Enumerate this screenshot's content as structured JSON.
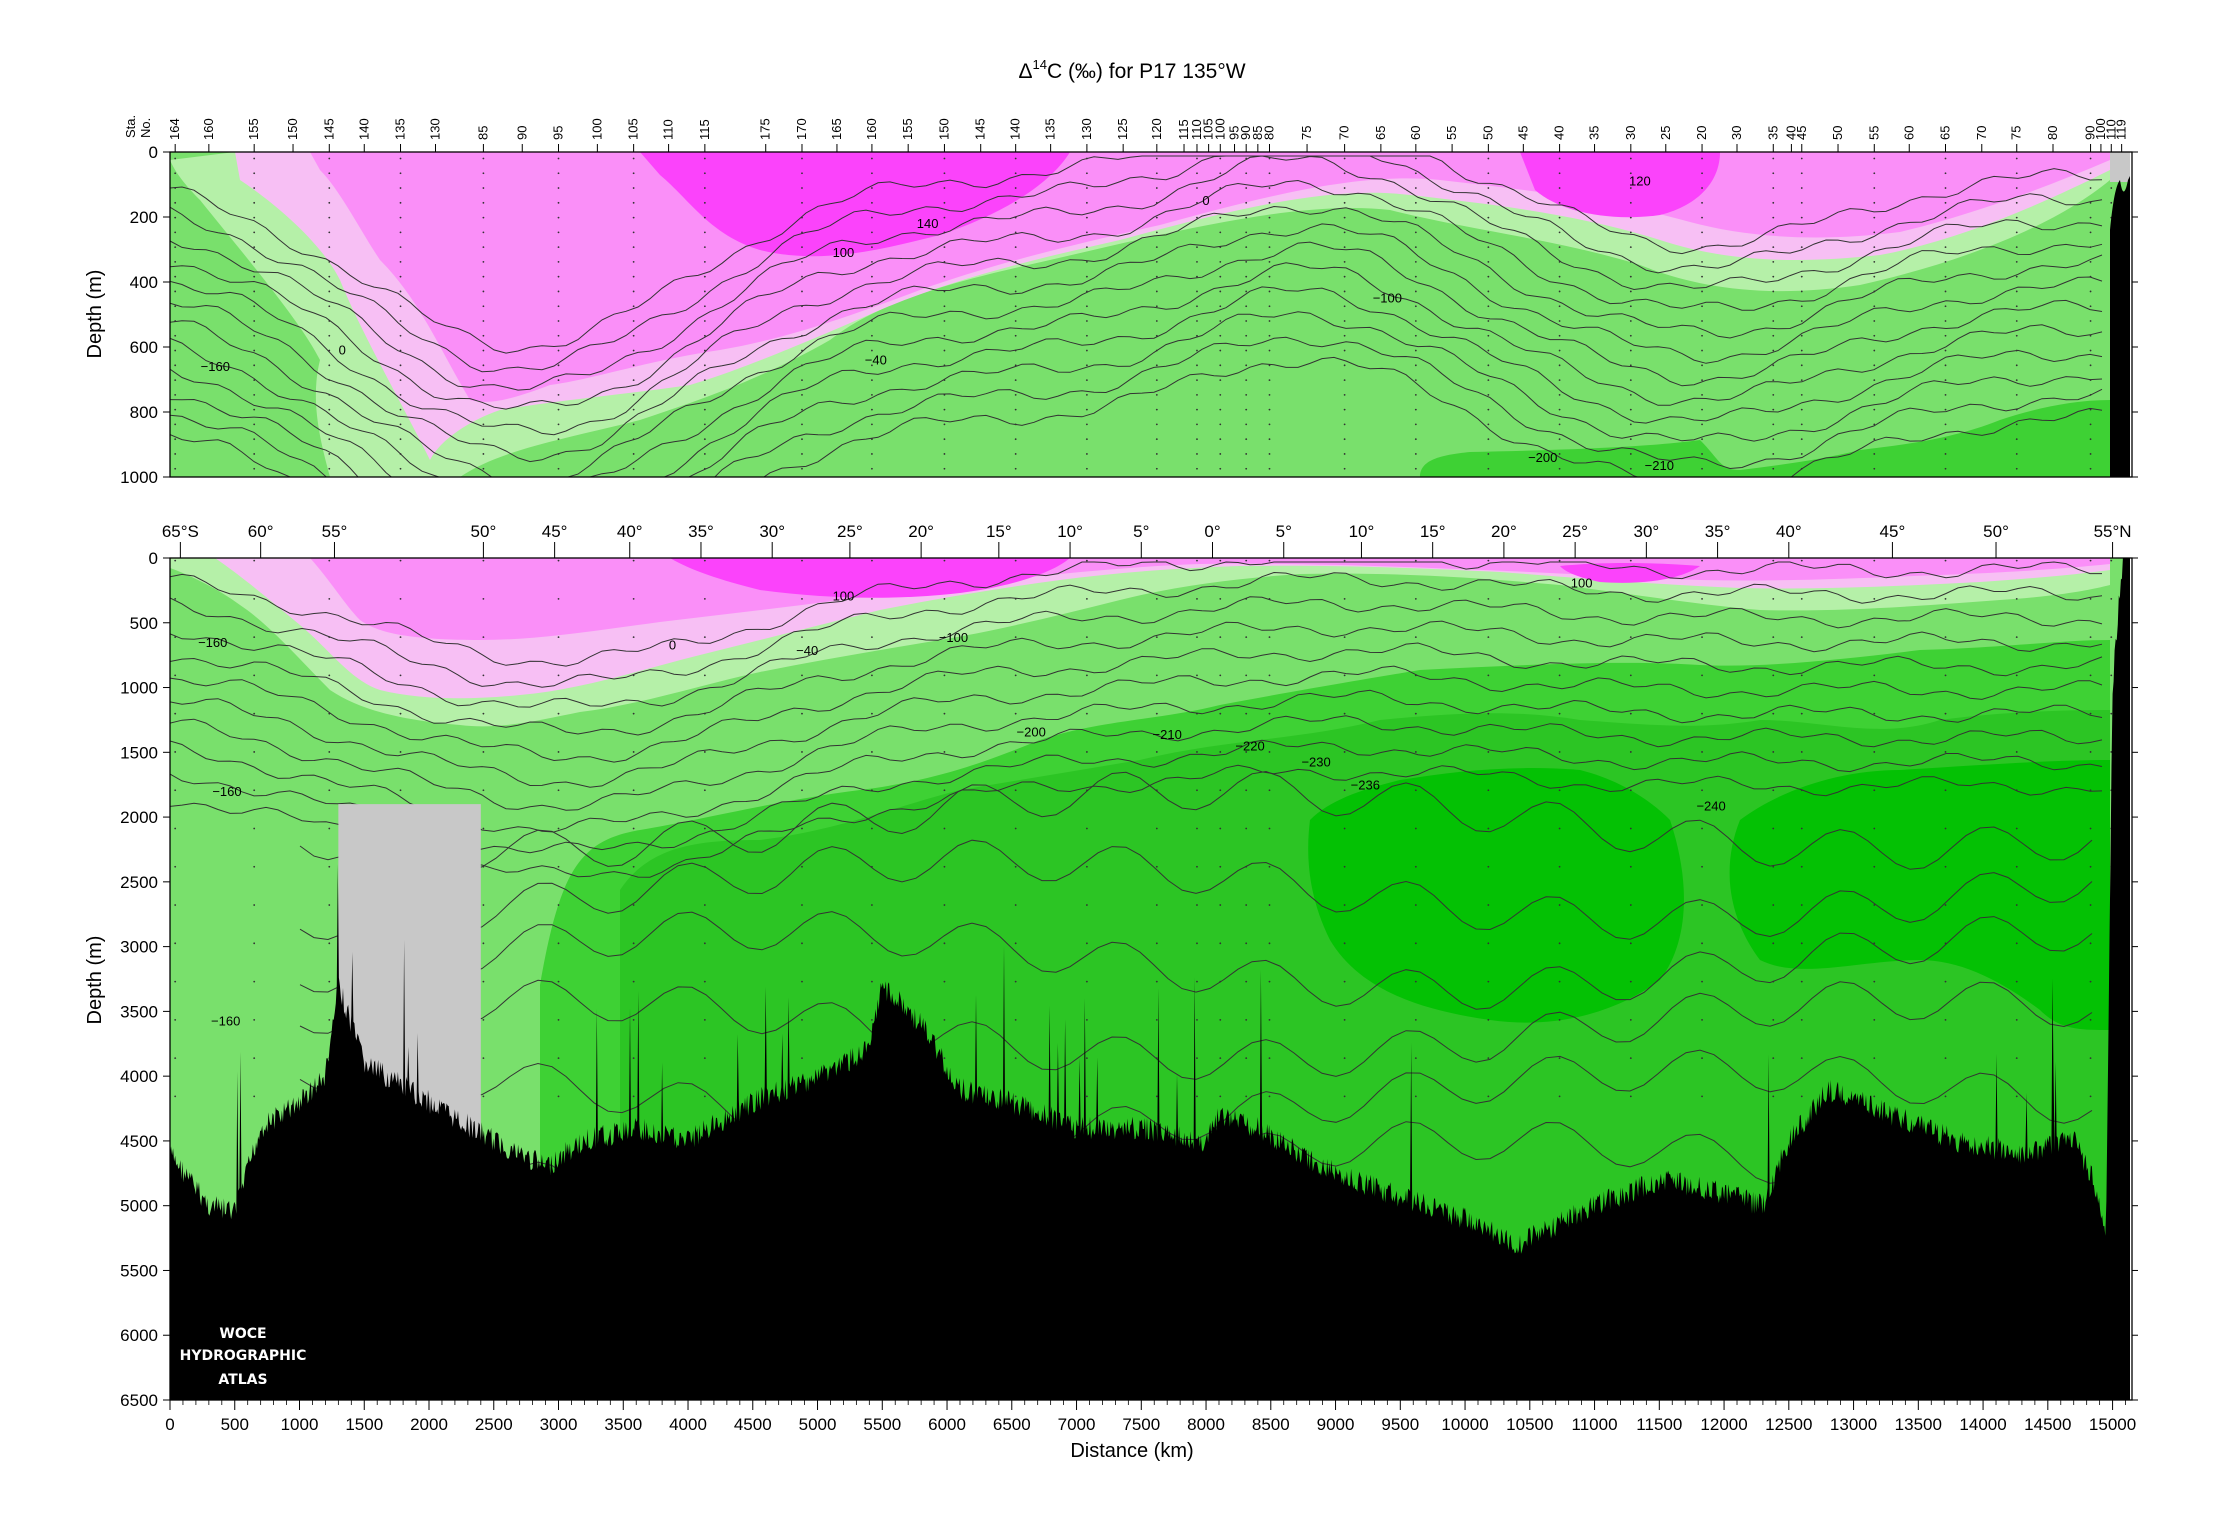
{
  "chart_data": {
    "type": "heatmap",
    "title": "Δ¹⁴C (‰) for P17 135°W",
    "title_parts": {
      "delta": "Δ",
      "sup": "14",
      "rest": "C (‰) for P17 135°W"
    },
    "xlabel": "Distance (km)",
    "ylabel": "Depth (m)",
    "station_label": [
      "Sta.",
      "No."
    ],
    "logo_lines": [
      "WOCE",
      "HYDROGRAPHIC",
      "ATLAS"
    ],
    "xlim": [
      0,
      15150
    ],
    "x_ticks": [
      0,
      500,
      1000,
      1500,
      2000,
      2500,
      3000,
      3500,
      4000,
      4500,
      5000,
      5500,
      6000,
      6500,
      7000,
      7500,
      8000,
      8500,
      9000,
      9500,
      10000,
      10500,
      11000,
      11500,
      12000,
      12500,
      13000,
      13500,
      14000,
      14500,
      15000
    ],
    "latitude_ticks": [
      {
        "km": 80,
        "label": "65°S"
      },
      {
        "km": 700,
        "label": "60°"
      },
      {
        "km": 1270,
        "label": "55°"
      },
      {
        "km": 2420,
        "label": "50°"
      },
      {
        "km": 2970,
        "label": "45°"
      },
      {
        "km": 3550,
        "label": "40°"
      },
      {
        "km": 4100,
        "label": "35°"
      },
      {
        "km": 4650,
        "label": "30°"
      },
      {
        "km": 5250,
        "label": "25°"
      },
      {
        "km": 5800,
        "label": "20°"
      },
      {
        "km": 6400,
        "label": "15°"
      },
      {
        "km": 6950,
        "label": "10°"
      },
      {
        "km": 7500,
        "label": "5°"
      },
      {
        "km": 8050,
        "label": "0°"
      },
      {
        "km": 8600,
        "label": "5°"
      },
      {
        "km": 9200,
        "label": "10°"
      },
      {
        "km": 9750,
        "label": "15°"
      },
      {
        "km": 10300,
        "label": "20°"
      },
      {
        "km": 10850,
        "label": "25°"
      },
      {
        "km": 11400,
        "label": "30°"
      },
      {
        "km": 11950,
        "label": "35°"
      },
      {
        "km": 12500,
        "label": "40°"
      },
      {
        "km": 13300,
        "label": "45°"
      },
      {
        "km": 14100,
        "label": "50°"
      },
      {
        "km": 15000,
        "label": "55°N"
      }
    ],
    "stations": [
      {
        "km": 40,
        "label": "164"
      },
      {
        "km": 300,
        "label": "160"
      },
      {
        "km": 650,
        "label": "155"
      },
      {
        "km": 950,
        "label": "150"
      },
      {
        "km": 1230,
        "label": "145"
      },
      {
        "km": 1500,
        "label": "140"
      },
      {
        "km": 1780,
        "label": "135"
      },
      {
        "km": 2050,
        "label": "130"
      },
      {
        "km": 2420,
        "label": "85"
      },
      {
        "km": 2720,
        "label": "90"
      },
      {
        "km": 3000,
        "label": "95"
      },
      {
        "km": 3300,
        "label": "100"
      },
      {
        "km": 3580,
        "label": "105"
      },
      {
        "km": 3850,
        "label": "110"
      },
      {
        "km": 4130,
        "label": "115"
      },
      {
        "km": 4600,
        "label": "175"
      },
      {
        "km": 4880,
        "label": "170"
      },
      {
        "km": 5150,
        "label": "165"
      },
      {
        "km": 5420,
        "label": "160"
      },
      {
        "km": 5700,
        "label": "155"
      },
      {
        "km": 5980,
        "label": "150"
      },
      {
        "km": 6260,
        "label": "145"
      },
      {
        "km": 6530,
        "label": "140"
      },
      {
        "km": 6800,
        "label": "135"
      },
      {
        "km": 7080,
        "label": "130"
      },
      {
        "km": 7360,
        "label": "125"
      },
      {
        "km": 7620,
        "label": "120"
      },
      {
        "km": 7830,
        "label": "115"
      },
      {
        "km": 7930,
        "label": "110"
      },
      {
        "km": 8020,
        "label": "105"
      },
      {
        "km": 8110,
        "label": "100"
      },
      {
        "km": 8220,
        "label": "95"
      },
      {
        "km": 8310,
        "label": "90"
      },
      {
        "km": 8400,
        "label": "85"
      },
      {
        "km": 8490,
        "label": "80"
      },
      {
        "km": 8780,
        "label": "75"
      },
      {
        "km": 9070,
        "label": "70"
      },
      {
        "km": 9350,
        "label": "65"
      },
      {
        "km": 9620,
        "label": "60"
      },
      {
        "km": 9900,
        "label": "55"
      },
      {
        "km": 10180,
        "label": "50"
      },
      {
        "km": 10450,
        "label": "45"
      },
      {
        "km": 10730,
        "label": "40"
      },
      {
        "km": 11000,
        "label": "35"
      },
      {
        "km": 11280,
        "label": "30"
      },
      {
        "km": 11550,
        "label": "25"
      },
      {
        "km": 11830,
        "label": "20"
      },
      {
        "km": 12100,
        "label": "30"
      },
      {
        "km": 12380,
        "label": "35"
      },
      {
        "km": 12520,
        "label": "40"
      },
      {
        "km": 12600,
        "label": "45"
      },
      {
        "km": 12880,
        "label": "50"
      },
      {
        "km": 13160,
        "label": "55"
      },
      {
        "km": 13430,
        "label": "60"
      },
      {
        "km": 13710,
        "label": "65"
      },
      {
        "km": 13990,
        "label": "70"
      },
      {
        "km": 14260,
        "label": "75"
      },
      {
        "km": 14540,
        "label": "80"
      },
      {
        "km": 14830,
        "label": "90"
      },
      {
        "km": 14910,
        "label": "100"
      },
      {
        "km": 14990,
        "label": "110"
      },
      {
        "km": 15070,
        "label": "119"
      }
    ],
    "legend": "none",
    "grid": false,
    "panels": [
      {
        "name": "upper",
        "ylim": [
          1000,
          0
        ],
        "y_ticks": [
          0,
          200,
          400,
          600,
          800,
          1000
        ],
        "contour_labels": [
          {
            "km": 8000,
            "depth": 160,
            "text": "0"
          },
          {
            "km": 5850,
            "depth": 230,
            "text": "140"
          },
          {
            "km": 5200,
            "depth": 320,
            "text": "100"
          },
          {
            "km": 11350,
            "depth": 100,
            "text": "120"
          },
          {
            "km": 9400,
            "depth": 460,
            "text": "−100"
          },
          {
            "km": 5450,
            "depth": 650,
            "text": "−40"
          },
          {
            "km": 1330,
            "depth": 620,
            "text": "0"
          },
          {
            "km": 350,
            "depth": 670,
            "text": "−160"
          },
          {
            "km": 10600,
            "depth": 950,
            "text": "−200"
          },
          {
            "km": 11500,
            "depth": 975,
            "text": "−210"
          }
        ]
      },
      {
        "name": "lower",
        "ylim": [
          6500,
          0
        ],
        "y_ticks": [
          0,
          500,
          1000,
          1500,
          2000,
          2500,
          3000,
          3500,
          4000,
          4500,
          5000,
          5500,
          6000,
          6500
        ],
        "gap_region": {
          "km": [
            1300,
            2400
          ],
          "depth_top": 1900
        },
        "contour_labels": [
          {
            "km": 5200,
            "depth": 320,
            "text": "100"
          },
          {
            "km": 10900,
            "depth": 220,
            "text": "100"
          },
          {
            "km": 6050,
            "depth": 640,
            "text": "−100"
          },
          {
            "km": 3880,
            "depth": 700,
            "text": "0"
          },
          {
            "km": 4920,
            "depth": 740,
            "text": "−40"
          },
          {
            "km": 330,
            "depth": 680,
            "text": "−160"
          },
          {
            "km": 6650,
            "depth": 1370,
            "text": "−200"
          },
          {
            "km": 7700,
            "depth": 1390,
            "text": "−210"
          },
          {
            "km": 8340,
            "depth": 1480,
            "text": "−220"
          },
          {
            "km": 8850,
            "depth": 1600,
            "text": "−230"
          },
          {
            "km": 9230,
            "depth": 1780,
            "text": "−236"
          },
          {
            "km": 11900,
            "depth": 1940,
            "text": "−240"
          },
          {
            "km": 440,
            "depth": 1830,
            "text": "−160"
          },
          {
            "km": 430,
            "depth": 3600,
            "text": "−160"
          }
        ]
      }
    ]
  }
}
